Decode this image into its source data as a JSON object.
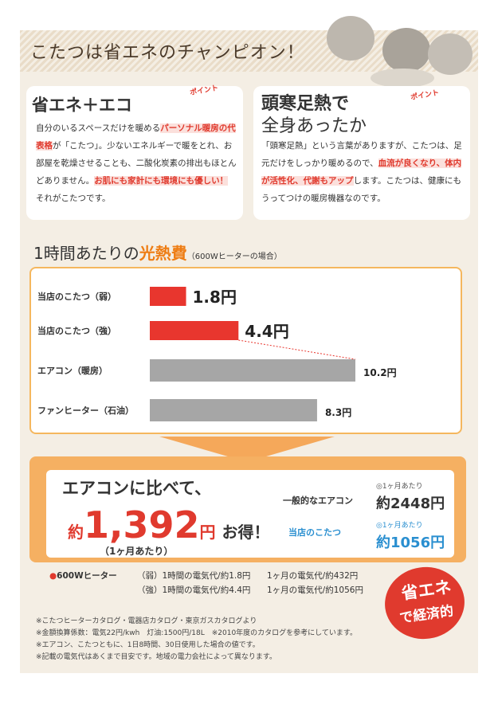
{
  "header": {
    "title": "こたつは省エネのチャンピオン！"
  },
  "eco": {
    "title": "省エネ＋エコ",
    "badge": "ポイント",
    "body": [
      "自分のいるスペースだけを暖める",
      "パーソナル暖房の代表格",
      "が「こたつ」。少ないエネルギーで暖をとれ、お部屋を乾燥させることも、二酸化炭素の排出もほとんどありません。",
      "お肌にも家計にも環境にも優しい！",
      "それがこたつです。"
    ]
  },
  "warm": {
    "title": [
      "頭寒足熱で",
      "全身あったか"
    ],
    "badge": "ポイント",
    "body": [
      "「頭寒足熱」という言葉がありますが、こたつは、足元だけをしっかり暖めるので、",
      "血流が良くなり、体内が活性化、代謝もアップ",
      "します。こたつは、健康にもうってつけの暖房機器なのです。"
    ]
  },
  "chart_heading": [
    "1時間あたりの",
    "光熱費",
    "（600Wヒーターの場合）"
  ],
  "chart_data": {
    "type": "bar",
    "orientation": "horizontal",
    "categories": [
      "当店のこたつ（弱）",
      "当店のこたつ（強）",
      "エアコン（暖房）",
      "ファンヒーター（石油）"
    ],
    "values": [
      1.8,
      4.4,
      10.2,
      8.3
    ],
    "value_labels": [
      "1.8円",
      "4.4円",
      "10.2円",
      "8.3円"
    ],
    "colors": [
      "#e8362e",
      "#e8362e",
      "#a6a6a6",
      "#a6a6a6"
    ]
  },
  "result": {
    "lead": "エアコンに比べて、",
    "prefix": "約",
    "amount": "1,392",
    "unit": "円",
    "suffix": "お得！",
    "note": "（1ヶ月あたり）"
  },
  "compare": [
    {
      "label": "一般的なエアコン",
      "note": "◎1ヶ月あたり",
      "value": "約2448円"
    },
    {
      "label": "当店のこたつ",
      "note": "◎1ヶ月あたり",
      "value": "約1056円"
    }
  ],
  "heater": {
    "label": "600Wヒーター",
    "rows": [
      [
        "（弱）1時間の電気代/約1.8円",
        "1ヶ月の電気代/約432円"
      ],
      [
        "（強）1時間の電気代/約4.4円",
        "1ヶ月の電気代/約1056円"
      ]
    ]
  },
  "badge": [
    "省エネ",
    "で経済的"
  ],
  "footnotes": [
    "※こたつヒーターカタログ・電器店カタログ・東京ガスカタログより",
    "※金額換算係数：電気22円/kwh　灯油:1500円/18L　※2010年度のカタログを参考にしています。",
    "※エアコン、こたつともに、1日8時間、30日使用した場合の値です。",
    "※記載の電気代はあくまで目安です。地域の電力会社によって異なります。"
  ]
}
